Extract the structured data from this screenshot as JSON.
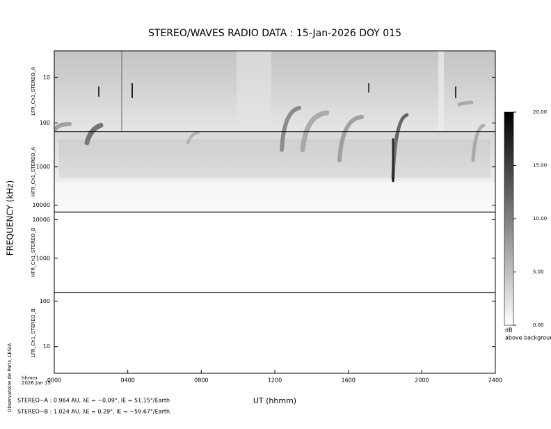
{
  "chart_data": {
    "type": "spectrogram",
    "title": "STEREO/WAVES  RADIO  DATA : 15-Jan-2026  DOY 015",
    "xlabel": "UT (hhmm)",
    "ylabel": "FREQUENCY (kHz)",
    "xlim": [
      0,
      24
    ],
    "xticks": [
      {
        "value": 0,
        "label": "0000"
      },
      {
        "value": 4,
        "label": "0400"
      },
      {
        "value": 8,
        "label": "0800"
      },
      {
        "value": 12,
        "label": "1200"
      },
      {
        "value": 16,
        "label": "1600"
      },
      {
        "value": 20,
        "label": "2000"
      },
      {
        "value": 24,
        "label": "2400"
      }
    ],
    "log_y": true,
    "panels": [
      {
        "name": "LFR_Ch1_STEREO_A",
        "ylim": [
          2.6,
          153
        ],
        "inverted": true,
        "yticks": [
          10,
          100
        ]
      },
      {
        "name": "HFR_Ch1_STEREO_A",
        "ylim": [
          118,
          15200
        ],
        "inverted": true,
        "yticks": [
          1000,
          10000
        ]
      },
      {
        "name": "HFR_Ch1_STEREO_B",
        "ylim": [
          128,
          15700
        ],
        "inverted": false,
        "yticks": [
          1000,
          10000
        ]
      },
      {
        "name": "LFR_Ch1_STEREO_B",
        "ylim": [
          2.6,
          153
        ],
        "inverted": false,
        "yticks": [
          10,
          100
        ]
      }
    ],
    "colorbar": {
      "clim": [
        0,
        20
      ],
      "ticks": [
        {
          "value": 0,
          "label": "0.00"
        },
        {
          "value": 5,
          "label": "5.00"
        },
        {
          "value": 10,
          "label": "10.00"
        },
        {
          "value": 15,
          "label": "15.00"
        },
        {
          "value": 20,
          "label": "20.00"
        }
      ],
      "unit": "dB",
      "label": "above background"
    },
    "credit": "Observatoire de Paris, LESIA",
    "time_unit": "hhmm",
    "date": "2026 Jan 15",
    "positions": [
      "STEREO−A : 0.964 AU, λE = −0.09°, lE = 51.15°/Earth",
      "STEREO−B : 1.024 AU, λE = 0.29°, lE = −59.67°/Earth"
    ]
  }
}
